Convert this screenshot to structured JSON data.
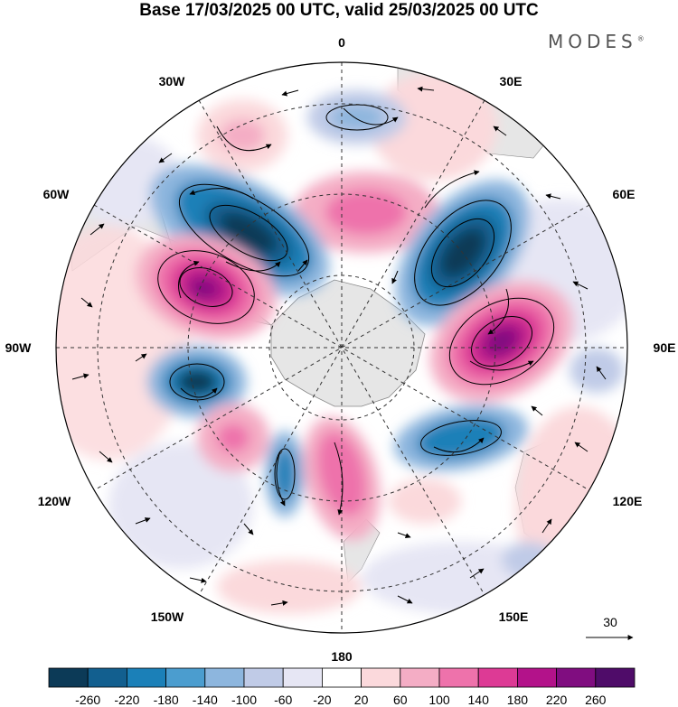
{
  "title": "Base 17/03/2025 00 UTC, valid 25/03/2025 00 UTC",
  "brand": "MODES",
  "brand_mark": "®",
  "map": {
    "projection": "south polar stereographic",
    "longitude_labels": {
      "top": "0",
      "top_right": "30E",
      "upper_right": "60E",
      "right": "90E",
      "lower_right": "120E",
      "bottom_right": "150E",
      "bottom": "180",
      "bottom_left": "150W",
      "lower_left": "120W",
      "left": "90W",
      "upper_left": "60W",
      "top_left": "30W"
    },
    "vector_reference": "30",
    "colors": {
      "land": "#e6e6e6",
      "coast": "#888888",
      "grid": "#333333"
    }
  },
  "colorbar": {
    "ticks": [
      "-260",
      "-220",
      "-180",
      "-140",
      "-100",
      "-60",
      "-20",
      "20",
      "60",
      "100",
      "140",
      "180",
      "220",
      "260"
    ],
    "colors": [
      "#0c3a57",
      "#125f8f",
      "#1b80b8",
      "#4b9dcf",
      "#8db6de",
      "#c0cbe7",
      "#e6e6f4",
      "#ffffff",
      "#fbd9dc",
      "#f4adc5",
      "#ee72ab",
      "#dd3a95",
      "#b3128a",
      "#800d80",
      "#4f0c69"
    ]
  }
}
